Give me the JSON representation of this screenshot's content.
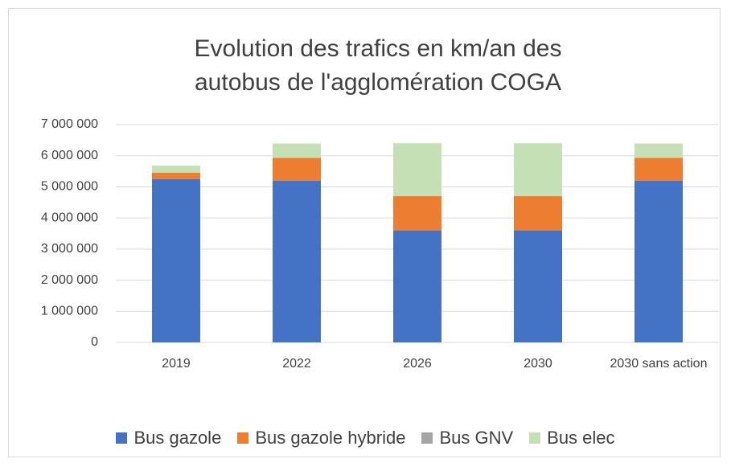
{
  "chart_data": {
    "type": "stacked_bar",
    "title": "Evolution des trafics en km/an des autobus de l'agglomération COGA",
    "categories": [
      "2019",
      "2022",
      "2026",
      "2030",
      "2030 sans action"
    ],
    "series": [
      {
        "name": "Bus gazole",
        "color": "#4472c4",
        "values": [
          5250000,
          5200000,
          3600000,
          3600000,
          5200000
        ]
      },
      {
        "name": "Bus gazole hybride",
        "color": "#ed7d31",
        "values": [
          200000,
          730000,
          1100000,
          1100000,
          730000
        ]
      },
      {
        "name": "Bus GNV",
        "color": "#a5a5a5",
        "values": [
          0,
          0,
          0,
          0,
          0
        ]
      },
      {
        "name": "Bus elec",
        "color": "#c5e0b4",
        "values": [
          230000,
          460000,
          1700000,
          1700000,
          460000
        ]
      }
    ],
    "ylim": [
      0,
      7000000
    ],
    "yticks": [
      0,
      {
        "value": 1000000,
        "label": "1 000 000"
      },
      {
        "value": 2000000,
        "label": "2 000 000"
      },
      {
        "value": 3000000,
        "label": "3 000 000"
      },
      {
        "value": 4000000,
        "label": "4 000 000"
      },
      {
        "value": 5000000,
        "label": "5 000 000"
      },
      {
        "value": 6000000,
        "label": "6 000 000"
      },
      {
        "value": 7000000,
        "label": "7 000 000"
      }
    ],
    "grid": true,
    "legend": "bottom"
  }
}
